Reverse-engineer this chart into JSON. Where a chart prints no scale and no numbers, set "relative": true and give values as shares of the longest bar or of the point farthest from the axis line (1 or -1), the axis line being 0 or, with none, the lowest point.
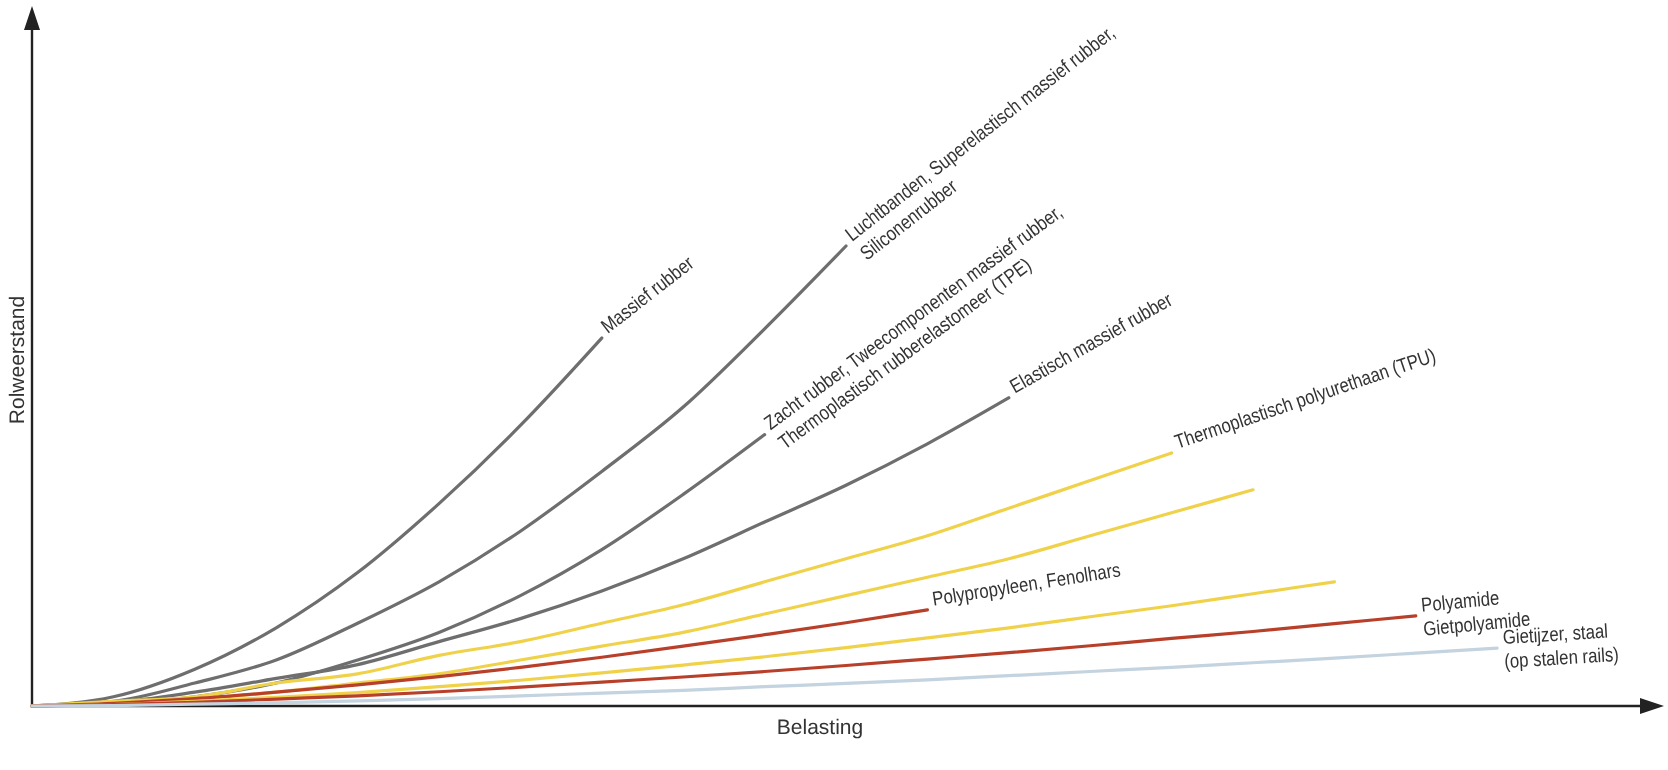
{
  "chart_data": {
    "type": "line",
    "relative": true,
    "xlabel": "Belasting",
    "ylabel": "Rolweerstand",
    "categories": [
      null,
      null,
      null,
      null,
      null,
      null,
      null,
      null,
      null,
      null,
      null,
      null,
      null,
      null,
      null,
      null,
      null,
      null,
      null,
      null,
      null
    ],
    "series": [
      {
        "name": "Massief rubber",
        "color": "#6e6e6e",
        "values": [
          0,
          0.02,
          0.08,
          0.17,
          0.29,
          0.44,
          0.61,
          0.8,
          null,
          null,
          null,
          null,
          null,
          null,
          null,
          null,
          null,
          null,
          null,
          null,
          null
        ]
      },
      {
        "name": "Luchtbanden, Superelastisch massief rubber,\nSiliconenrubber",
        "color": "#6e6e6e",
        "values": [
          0,
          0.01,
          0.05,
          0.1,
          0.18,
          0.27,
          0.38,
          0.51,
          0.65,
          0.82,
          1,
          null,
          null,
          null,
          null,
          null,
          null,
          null,
          null,
          null,
          null
        ]
      },
      {
        "name": "Zacht rubber, Tweecomponenten massief rubber,\nThermoplastisch rubberelastomeer (TPE)",
        "color": "#6e6e6e",
        "values": [
          0,
          0.005,
          0.02,
          0.05,
          0.1,
          0.16,
          0.24,
          0.34,
          0.46,
          0.59,
          null,
          null,
          null,
          null,
          null,
          null,
          null,
          null,
          null,
          null,
          null
        ]
      },
      {
        "name": "Elastisch massief rubber",
        "color": "#6e6e6e",
        "values": [
          0,
          0.007,
          0.03,
          0.06,
          0.09,
          0.14,
          0.19,
          0.25,
          0.32,
          0.4,
          0.48,
          0.57,
          0.67,
          null,
          null,
          null,
          null,
          null,
          null,
          null,
          null
        ]
      },
      {
        "name": "Thermoplastisch polyurethaan (TPU)",
        "color": "#f0d24a",
        "values": [
          0,
          0.01,
          0.02,
          0.05,
          0.07,
          0.11,
          0.14,
          0.18,
          0.22,
          0.27,
          0.32,
          0.37,
          0.43,
          0.49,
          0.55,
          null,
          null,
          null,
          null,
          null,
          null
        ]
      },
      {
        "color": "#f0d24a",
        "values": [
          0,
          0.005,
          0.015,
          0.03,
          0.05,
          0.07,
          0.1,
          0.13,
          0.16,
          0.2,
          0.24,
          0.28,
          0.32,
          0.37,
          0.42,
          0.47,
          null,
          null,
          null,
          null,
          null
        ]
      },
      {
        "name": "Polypropyleen, Fenolhars",
        "color": "#b8402a",
        "values": [
          0,
          0.006,
          0.016,
          0.03,
          0.046,
          0.064,
          0.084,
          0.106,
          0.13,
          0.155,
          0.181,
          0.209,
          null,
          null,
          null,
          null,
          null,
          null,
          null,
          null,
          null
        ]
      },
      {
        "color": "#f0d24a",
        "values": [
          0,
          0.003,
          0.01,
          0.019,
          0.029,
          0.042,
          0.056,
          0.072,
          0.089,
          0.107,
          0.127,
          0.148,
          0.17,
          0.194,
          0.218,
          0.244,
          0.27,
          null,
          null,
          null,
          null
        ]
      },
      {
        "name": "Polyamide\nGietpolyamide",
        "color": "#b8402a",
        "values": [
          0,
          0.003,
          0.008,
          0.015,
          0.022,
          0.031,
          0.041,
          0.052,
          0.063,
          0.075,
          0.088,
          0.102,
          0.116,
          0.131,
          0.147,
          0.162,
          0.179,
          0.196,
          null,
          null,
          null
        ]
      },
      {
        "name": "Gietijzer, staal\n(op stalen rails)",
        "color": "#c3d3e0",
        "values": [
          0,
          0.001,
          0.004,
          0.007,
          0.011,
          0.016,
          0.022,
          0.028,
          0.034,
          0.042,
          0.049,
          0.057,
          0.066,
          0.075,
          0.084,
          0.094,
          0.104,
          0.115,
          0.126,
          null,
          null
        ]
      }
    ]
  }
}
